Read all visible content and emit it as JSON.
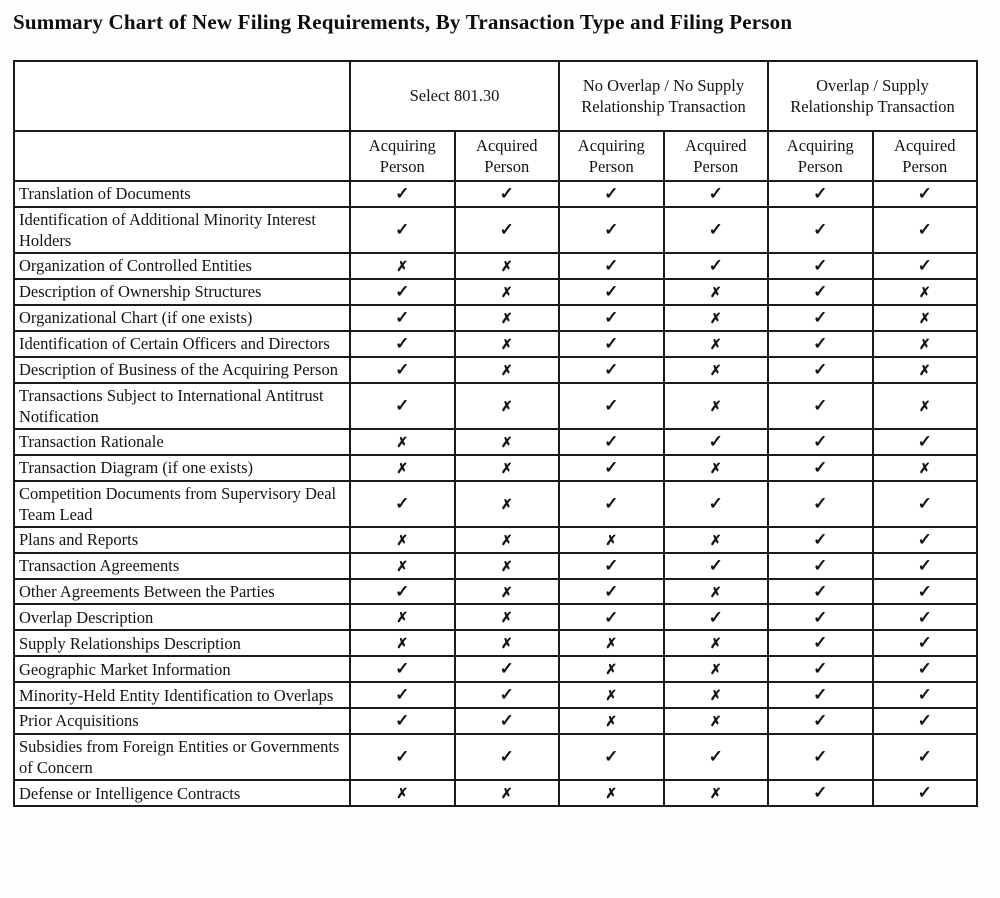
{
  "title": "Summary Chart of New Filing Requirements, By Transaction Type and Filing Person",
  "marks": {
    "check": "✓",
    "cross": "✗"
  },
  "table": {
    "corner_label": "",
    "group_headers": [
      {
        "label": "Select 801.30",
        "shaded": true
      },
      {
        "label": "No Overlap / No Supply Relationship Transaction",
        "shaded": false
      },
      {
        "label": "Overlap / Supply Relationship Transaction",
        "shaded": true
      }
    ],
    "sub_headers": [
      "Acquiring Person",
      "Acquired Person",
      "Acquiring Person",
      "Acquired Person",
      "Acquiring Person",
      "Acquired Person"
    ],
    "rows": [
      {
        "label": "Translation of Documents",
        "values": [
          "check",
          "check",
          "check",
          "check",
          "check",
          "check"
        ]
      },
      {
        "label": "Identification of Additional Minority Interest Holders",
        "values": [
          "check",
          "check",
          "check",
          "check",
          "check",
          "check"
        ]
      },
      {
        "label": "Organization of Controlled Entities",
        "values": [
          "cross",
          "cross",
          "check",
          "check",
          "check",
          "check"
        ]
      },
      {
        "label": "Description of Ownership Structures",
        "values": [
          "check",
          "cross",
          "check",
          "cross",
          "check",
          "cross"
        ]
      },
      {
        "label": "Organizational Chart (if one exists)",
        "values": [
          "check",
          "cross",
          "check",
          "cross",
          "check",
          "cross"
        ]
      },
      {
        "label": "Identification of Certain Officers and Directors",
        "values": [
          "check",
          "cross",
          "check",
          "cross",
          "check",
          "cross"
        ]
      },
      {
        "label": "Description of Business of the Acquiring Person",
        "values": [
          "check",
          "cross",
          "check",
          "cross",
          "check",
          "cross"
        ]
      },
      {
        "label": "Transactions Subject to International Antitrust Notification",
        "values": [
          "check",
          "cross",
          "check",
          "cross",
          "check",
          "cross"
        ]
      },
      {
        "label": "Transaction Rationale",
        "values": [
          "cross",
          "cross",
          "check",
          "check",
          "check",
          "check"
        ]
      },
      {
        "label": "Transaction Diagram (if one exists)",
        "values": [
          "cross",
          "cross",
          "check",
          "cross",
          "check",
          "cross"
        ]
      },
      {
        "label": "Competition Documents from Supervisory Deal Team Lead",
        "values": [
          "check",
          "cross",
          "check",
          "check",
          "check",
          "check"
        ]
      },
      {
        "label": "Plans and Reports",
        "values": [
          "cross",
          "cross",
          "cross",
          "cross",
          "check",
          "check"
        ]
      },
      {
        "label": "Transaction Agreements",
        "values": [
          "cross",
          "cross",
          "check",
          "check",
          "check",
          "check"
        ]
      },
      {
        "label": "Other Agreements Between the Parties",
        "values": [
          "check",
          "cross",
          "check",
          "cross",
          "check",
          "check"
        ]
      },
      {
        "label": "Overlap Description",
        "values": [
          "cross",
          "cross",
          "check",
          "check",
          "check",
          "check"
        ]
      },
      {
        "label": "Supply Relationships Description",
        "values": [
          "cross",
          "cross",
          "cross",
          "cross",
          "check",
          "check"
        ]
      },
      {
        "label": "Geographic Market Information",
        "values": [
          "check",
          "check",
          "cross",
          "cross",
          "check",
          "check"
        ]
      },
      {
        "label": "Minority-Held Entity Identification to Overlaps",
        "values": [
          "check",
          "check",
          "cross",
          "cross",
          "check",
          "check"
        ]
      },
      {
        "label": "Prior Acquisitions",
        "values": [
          "check",
          "check",
          "cross",
          "cross",
          "check",
          "check"
        ]
      },
      {
        "label": "Subsidies from Foreign Entities or Governments of Concern",
        "values": [
          "check",
          "check",
          "check",
          "check",
          "check",
          "check"
        ]
      },
      {
        "label": "Defense or Intelligence Contracts",
        "values": [
          "cross",
          "cross",
          "cross",
          "cross",
          "check",
          "check"
        ]
      }
    ]
  },
  "colors": {
    "shaded_column_bg": "#efeeee",
    "border": "#1b1b1b",
    "text": "#111111"
  }
}
